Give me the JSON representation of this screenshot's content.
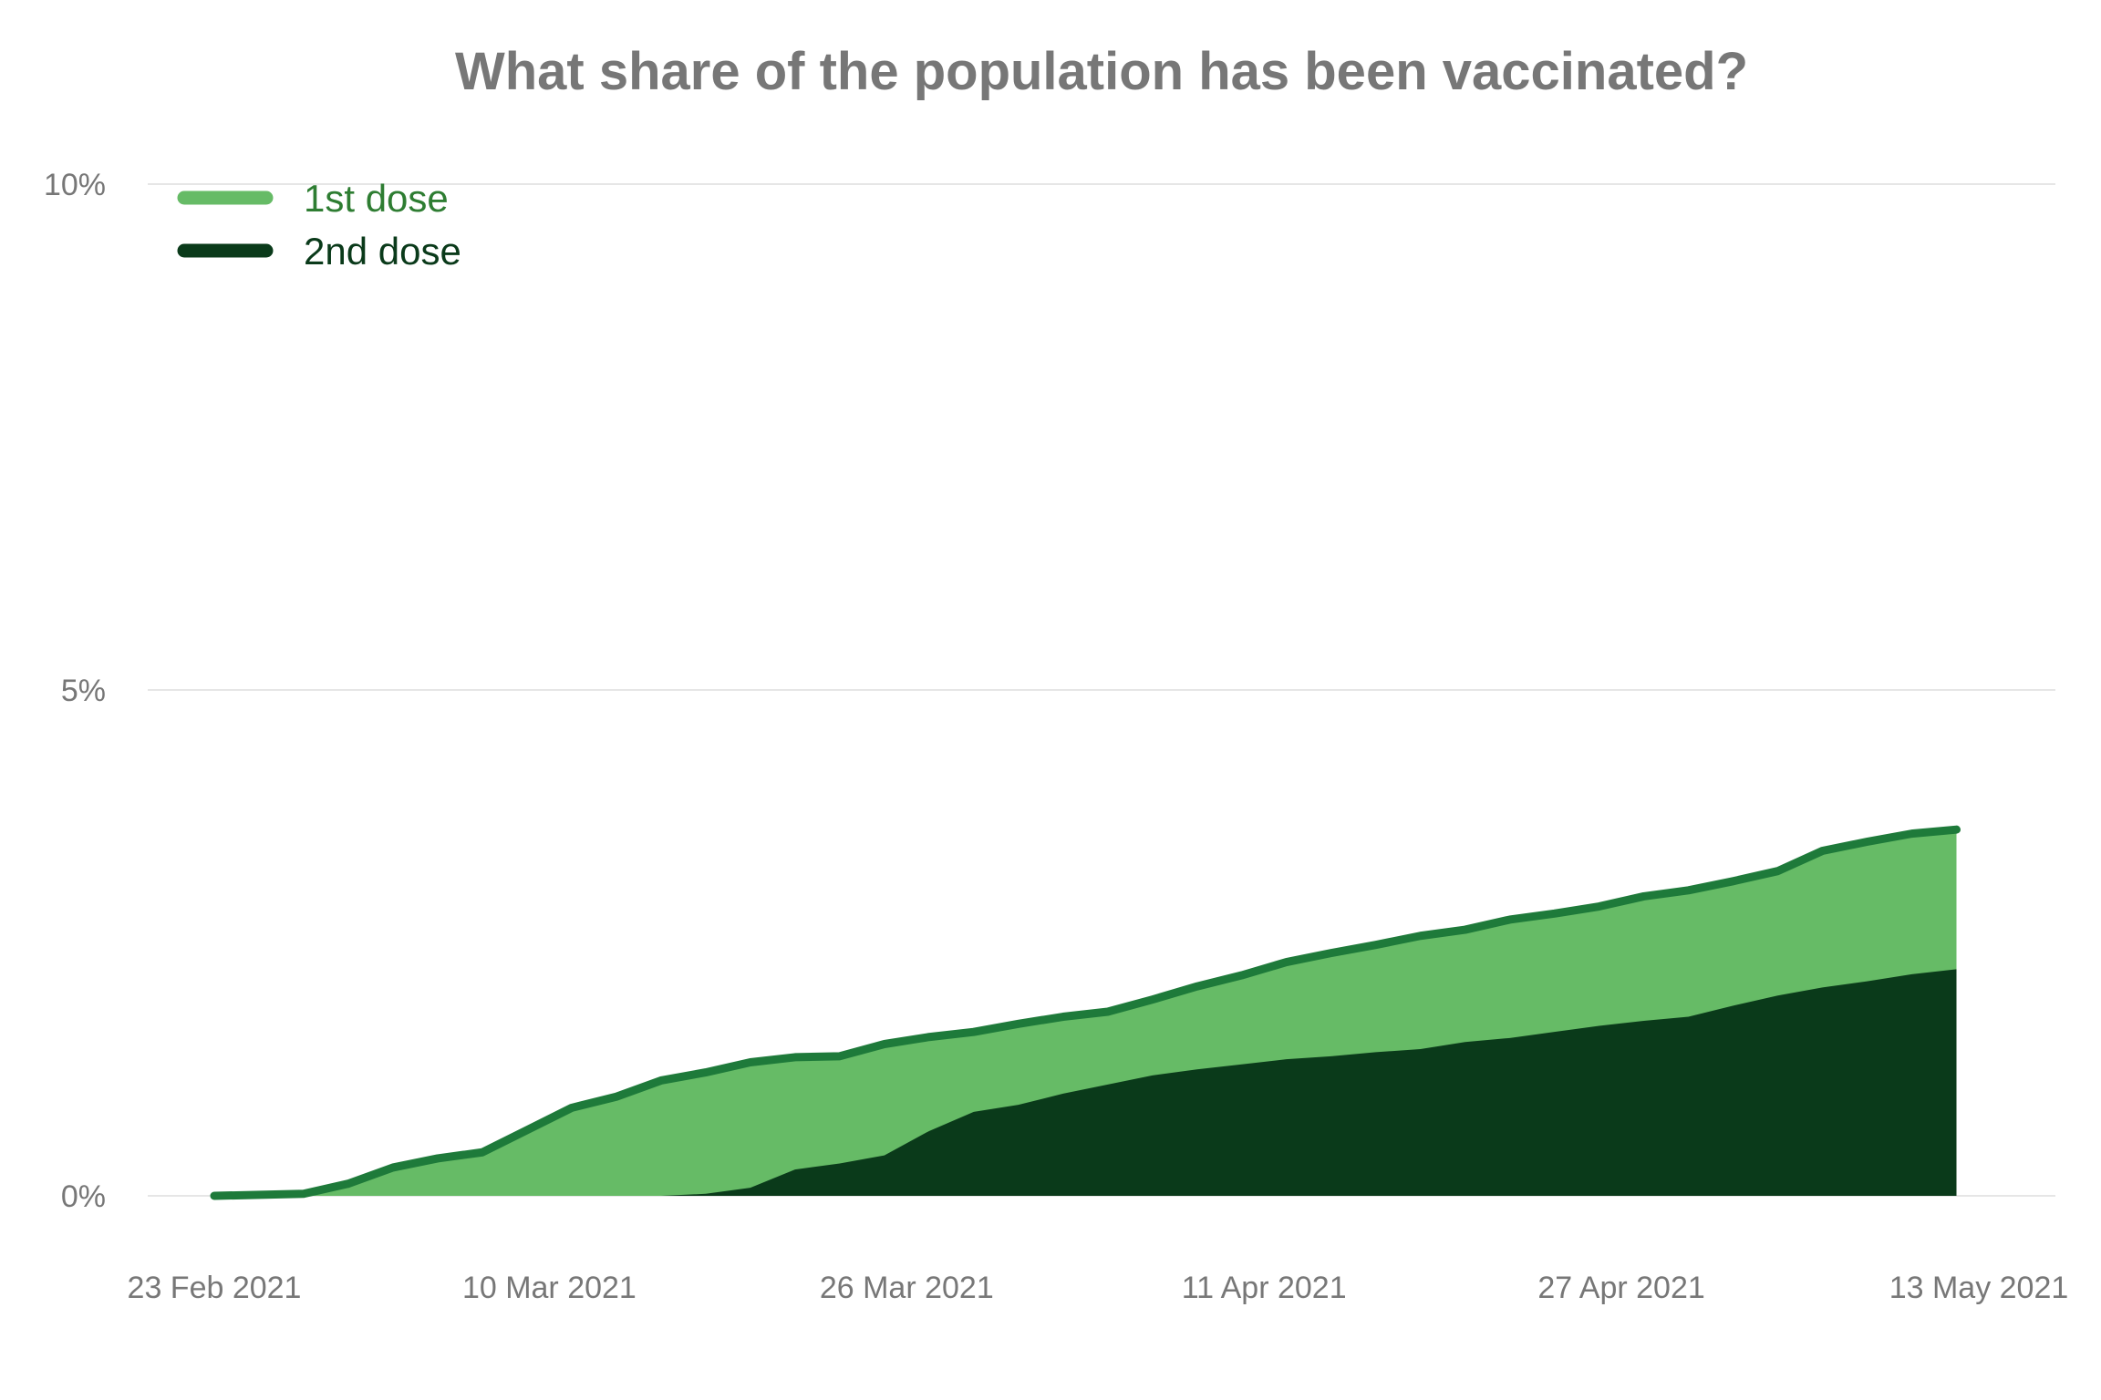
{
  "chart_data": {
    "type": "area",
    "title": "What share of the population has been vaccinated?",
    "xlabel": "",
    "ylabel": "",
    "x_tick_labels": [
      "23 Feb 2021",
      "10 Mar 2021",
      "26 Mar 2021",
      "11 Apr 2021",
      "27 Apr 2021",
      "13 May 2021"
    ],
    "x_ticks": [
      "2021-02-23",
      "2021-03-10",
      "2021-03-26",
      "2021-04-11",
      "2021-04-27",
      "2021-05-13"
    ],
    "y_tick_labels": [
      "0%",
      "5%",
      "10%"
    ],
    "y_ticks": [
      0,
      5,
      10
    ],
    "ylim": [
      0,
      10
    ],
    "xlim": [
      "2021-02-23",
      "2021-05-13"
    ],
    "grid": true,
    "legend": "top-left",
    "colors": {
      "first_dose_fill": "#66bb66",
      "first_dose_line": "#1e7a3a",
      "second_dose_fill": "#0a3a1a",
      "first_dose_legend_text": "#2e7d32",
      "second_dose_legend_text": "#0a3a1a"
    },
    "series": [
      {
        "name": "1st dose",
        "points": [
          [
            "2021-02-23",
            0.0
          ],
          [
            "2021-02-27",
            0.02
          ],
          [
            "2021-03-01",
            0.12
          ],
          [
            "2021-03-03",
            0.28
          ],
          [
            "2021-03-05",
            0.37
          ],
          [
            "2021-03-07",
            0.43
          ],
          [
            "2021-03-09",
            0.65
          ],
          [
            "2021-03-11",
            0.87
          ],
          [
            "2021-03-13",
            0.98
          ],
          [
            "2021-03-15",
            1.14
          ],
          [
            "2021-03-17",
            1.22
          ],
          [
            "2021-03-19",
            1.32
          ],
          [
            "2021-03-21",
            1.37
          ],
          [
            "2021-03-23",
            1.38
          ],
          [
            "2021-03-25",
            1.5
          ],
          [
            "2021-03-27",
            1.57
          ],
          [
            "2021-03-29",
            1.62
          ],
          [
            "2021-03-31",
            1.7
          ],
          [
            "2021-04-02",
            1.77
          ],
          [
            "2021-04-04",
            1.82
          ],
          [
            "2021-04-06",
            1.94
          ],
          [
            "2021-04-08",
            2.07
          ],
          [
            "2021-04-10",
            2.18
          ],
          [
            "2021-04-12",
            2.31
          ],
          [
            "2021-04-14",
            2.4
          ],
          [
            "2021-04-16",
            2.48
          ],
          [
            "2021-04-18",
            2.57
          ],
          [
            "2021-04-20",
            2.63
          ],
          [
            "2021-04-22",
            2.73
          ],
          [
            "2021-04-24",
            2.79
          ],
          [
            "2021-04-26",
            2.86
          ],
          [
            "2021-04-28",
            2.96
          ],
          [
            "2021-04-30",
            3.02
          ],
          [
            "2021-05-02",
            3.11
          ],
          [
            "2021-05-04",
            3.21
          ],
          [
            "2021-05-06",
            3.41
          ],
          [
            "2021-05-08",
            3.5
          ],
          [
            "2021-05-10",
            3.58
          ],
          [
            "2021-05-12",
            3.62
          ]
        ]
      },
      {
        "name": "2nd dose",
        "points": [
          [
            "2021-02-23",
            0.0
          ],
          [
            "2021-03-15",
            0.0
          ],
          [
            "2021-03-17",
            0.02
          ],
          [
            "2021-03-19",
            0.08
          ],
          [
            "2021-03-21",
            0.26
          ],
          [
            "2021-03-23",
            0.32
          ],
          [
            "2021-03-25",
            0.4
          ],
          [
            "2021-03-27",
            0.64
          ],
          [
            "2021-03-29",
            0.83
          ],
          [
            "2021-03-31",
            0.9
          ],
          [
            "2021-04-02",
            1.01
          ],
          [
            "2021-04-04",
            1.1
          ],
          [
            "2021-04-06",
            1.19
          ],
          [
            "2021-04-08",
            1.25
          ],
          [
            "2021-04-10",
            1.3
          ],
          [
            "2021-04-12",
            1.35
          ],
          [
            "2021-04-14",
            1.38
          ],
          [
            "2021-04-16",
            1.42
          ],
          [
            "2021-04-18",
            1.45
          ],
          [
            "2021-04-20",
            1.52
          ],
          [
            "2021-04-22",
            1.56
          ],
          [
            "2021-04-24",
            1.62
          ],
          [
            "2021-04-26",
            1.68
          ],
          [
            "2021-04-28",
            1.73
          ],
          [
            "2021-04-30",
            1.77
          ],
          [
            "2021-05-02",
            1.88
          ],
          [
            "2021-05-04",
            1.98
          ],
          [
            "2021-05-06",
            2.06
          ],
          [
            "2021-05-08",
            2.12
          ],
          [
            "2021-05-10",
            2.19
          ],
          [
            "2021-05-12",
            2.24
          ]
        ]
      }
    ]
  }
}
